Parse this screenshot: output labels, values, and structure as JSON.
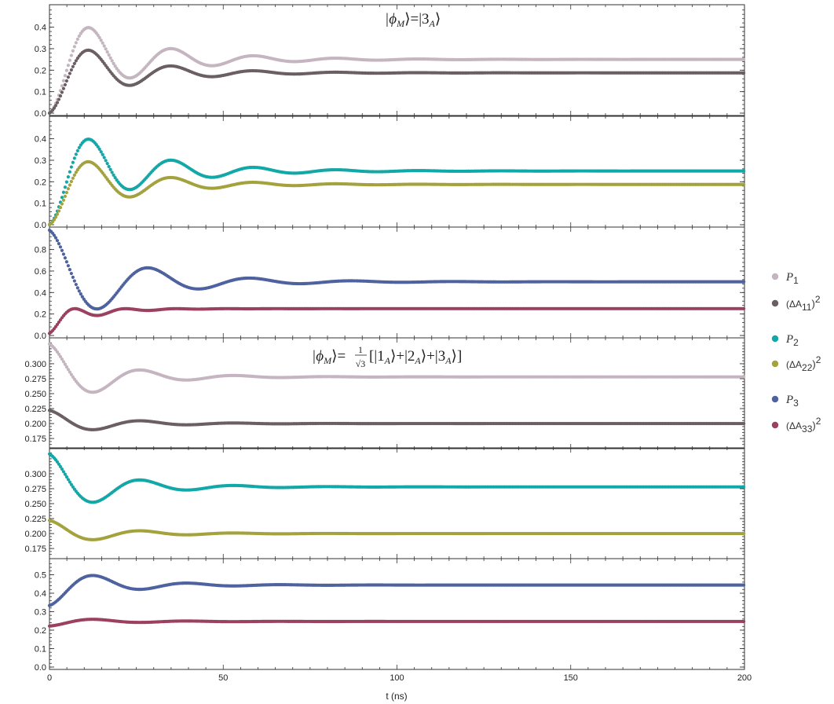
{
  "chart_data": {
    "type": "scatter",
    "xlabel": "t (ns)",
    "xlim": [
      0,
      200
    ],
    "xticks": [
      0,
      50,
      100,
      150,
      200
    ],
    "colors": {
      "P1": "#c5b5c0",
      "dA11": "#6b5f63",
      "P2": "#12a8a8",
      "dA22": "#a3a23c",
      "P3": "#4e62a0",
      "dA33": "#9b4060"
    },
    "legend": {
      "placement": "right",
      "entries": [
        {
          "key": "P1",
          "main": "P",
          "sub": "1",
          "pre": "",
          "post": ""
        },
        {
          "key": "dA11",
          "main": "(ΔA",
          "sub": "11",
          "pre": "",
          "post": ")",
          "sup": "2"
        },
        {
          "key": "P2",
          "main": "P",
          "sub": "2",
          "pre": "",
          "post": ""
        },
        {
          "key": "dA22",
          "main": "(ΔA",
          "sub": "22",
          "pre": "",
          "post": ")",
          "sup": "2"
        },
        {
          "key": "P3",
          "main": "P",
          "sub": "3",
          "pre": "",
          "post": ""
        },
        {
          "key": "dA33",
          "main": "(ΔA",
          "sub": "33",
          "pre": "",
          "post": ")",
          "sup": "2"
        }
      ]
    },
    "annotations": [
      {
        "panel": 0,
        "text_pre": "|ϕ",
        "text_sub": "M",
        "text_mid": "⟩=|3",
        "text_sub2": "A",
        "text_post": "⟩"
      },
      {
        "panel": 3,
        "text_pre": "|ϕ",
        "text_sub": "M",
        "text_mid": "⟩=",
        "frac_num": "1",
        "frac_den": "√3",
        "text_post": "[|1",
        "sub1": "A",
        "t2": "⟩+|2",
        "sub2": "A",
        "t3": "⟩+|3",
        "sub3": "A",
        "t4": "⟩]"
      }
    ],
    "panels": [
      {
        "ylim": [
          0,
          0.49
        ],
        "yticks": [
          "0.0",
          "0.1",
          "0.2",
          "0.3",
          "0.4"
        ],
        "ytick_values": [
          0,
          0.1,
          0.2,
          0.3,
          0.4
        ],
        "series": [
          {
            "key": "P1",
            "model": "osc",
            "start": 0,
            "final": 0.25,
            "tau": 22,
            "omega": 0.265,
            "phase": 0.0
          },
          {
            "key": "dA11",
            "model": "osc",
            "start": 0,
            "final": 0.1875,
            "tau": 20,
            "omega": 0.265,
            "phase": 0.0
          }
        ]
      },
      {
        "ylim": [
          0,
          0.49
        ],
        "yticks": [
          "0.0",
          "0.1",
          "0.2",
          "0.3",
          "0.4"
        ],
        "ytick_values": [
          0,
          0.1,
          0.2,
          0.3,
          0.4
        ],
        "series": [
          {
            "key": "P2",
            "model": "osc",
            "start": 0,
            "final": 0.25,
            "tau": 22,
            "omega": 0.265,
            "phase": 0.0
          },
          {
            "key": "dA22",
            "model": "osc",
            "start": 0,
            "final": 0.1875,
            "tau": 20,
            "omega": 0.265,
            "phase": 0.0
          }
        ]
      },
      {
        "ylim": [
          0,
          0.98
        ],
        "yticks": [
          "0.0",
          "0.2",
          "0.4",
          "0.6",
          "0.8"
        ],
        "ytick_values": [
          0,
          0.2,
          0.4,
          0.6,
          0.8
        ],
        "series": [
          {
            "key": "P3",
            "model": "osc",
            "start": 0.98,
            "final": 0.5,
            "tau": 22,
            "omega": 0.215,
            "phase": 0.0
          },
          {
            "key": "dA33",
            "model": "pq",
            "start": 0,
            "final": 0.25,
            "tau": 22,
            "omega": 0.215,
            "phase": 0.0
          }
        ]
      },
      {
        "ylim": [
          0.162,
          0.338
        ],
        "yticks": [
          "0.175",
          "0.200",
          "0.225",
          "0.250",
          "0.275",
          "0.300"
        ],
        "ytick_values": [
          0.175,
          0.2,
          0.225,
          0.25,
          0.275,
          0.3
        ],
        "series": [
          {
            "key": "P1",
            "model": "osc",
            "start": 0.333,
            "final": 0.278,
            "tau": 17,
            "omega": 0.233,
            "phase": 0.0
          },
          {
            "key": "dA11",
            "model": "osc",
            "start": 0.222,
            "final": 0.2,
            "tau": 17,
            "omega": 0.233,
            "phase": 0.0
          }
        ]
      },
      {
        "ylim": [
          0.162,
          0.338
        ],
        "yticks": [
          "0.175",
          "0.200",
          "0.225",
          "0.250",
          "0.275",
          "0.300"
        ],
        "ytick_values": [
          0.175,
          0.2,
          0.225,
          0.25,
          0.275,
          0.3
        ],
        "series": [
          {
            "key": "P2",
            "model": "osc",
            "start": 0.333,
            "final": 0.278,
            "tau": 17,
            "omega": 0.233,
            "phase": 0.0
          },
          {
            "key": "dA22",
            "model": "osc",
            "start": 0.222,
            "final": 0.2,
            "tau": 17,
            "omega": 0.233,
            "phase": 0.0
          }
        ]
      },
      {
        "ylim": [
          0,
          0.57
        ],
        "yticks": [
          "0.0",
          "0.1",
          "0.2",
          "0.3",
          "0.4",
          "0.5"
        ],
        "ytick_values": [
          0,
          0.1,
          0.2,
          0.3,
          0.4,
          0.5
        ],
        "series": [
          {
            "key": "P3",
            "model": "osc",
            "start": 0.333,
            "final": 0.444,
            "tau": 17,
            "omega": 0.233,
            "phase": 0.0
          },
          {
            "key": "dA33",
            "model": "osc",
            "start": 0.222,
            "final": 0.247,
            "tau": 17,
            "omega": 0.233,
            "phase": 0.0
          }
        ]
      }
    ]
  }
}
